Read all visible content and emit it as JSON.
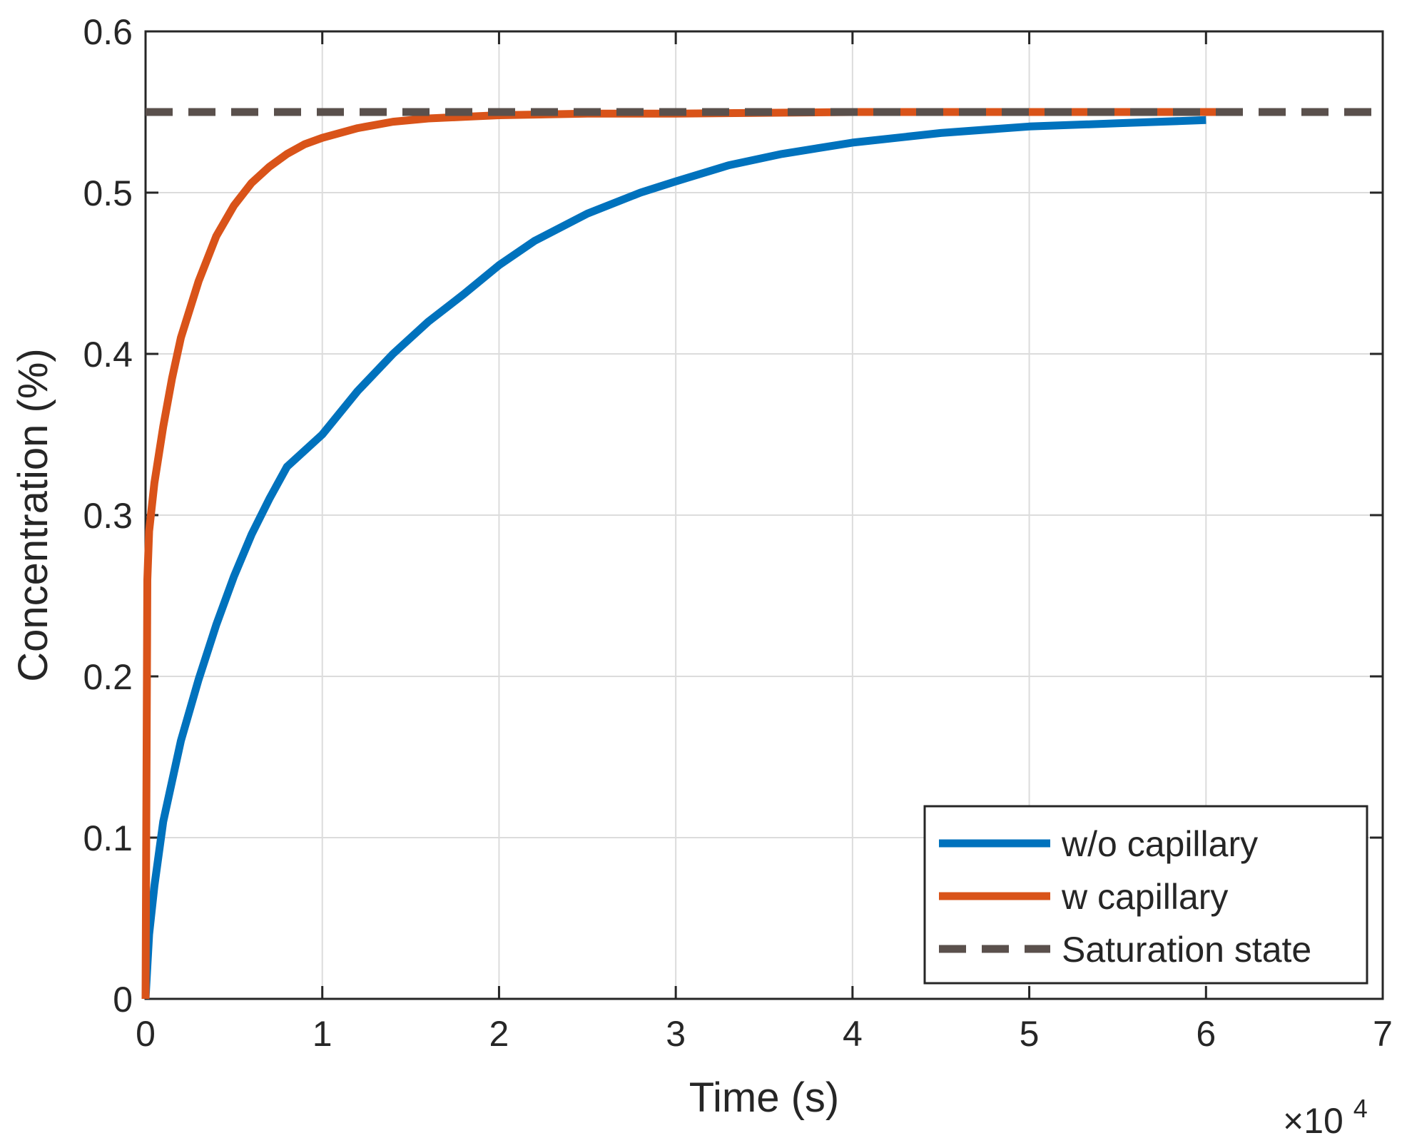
{
  "chart_data": {
    "type": "line",
    "title": "",
    "xlabel": "Time (s)",
    "ylabel": "Concentration (%)",
    "x_multiplier_label": "×10",
    "x_multiplier_exponent": "4",
    "xlim": [
      0,
      7
    ],
    "ylim": [
      0,
      0.6
    ],
    "x_ticks": [
      0,
      1,
      2,
      3,
      4,
      5,
      6,
      7
    ],
    "y_ticks": [
      0,
      0.1,
      0.2,
      0.3,
      0.4,
      0.5,
      0.6
    ],
    "x_tick_labels": [
      "0",
      "1",
      "2",
      "3",
      "4",
      "5",
      "6",
      "7"
    ],
    "y_tick_labels": [
      "0",
      "0.1",
      "0.2",
      "0.3",
      "0.4",
      "0.5",
      "0.6"
    ],
    "grid": true,
    "legend_position": "bottom-right",
    "series": [
      {
        "name": "w/o capillary",
        "color": "#0072BD",
        "style": "solid",
        "x": [
          0,
          0.02,
          0.05,
          0.1,
          0.2,
          0.3,
          0.4,
          0.5,
          0.6,
          0.7,
          0.8,
          1.0,
          1.2,
          1.4,
          1.6,
          1.8,
          2.0,
          2.2,
          2.5,
          2.8,
          3.0,
          3.3,
          3.6,
          4.0,
          4.5,
          5.0,
          5.5,
          6.0
        ],
        "y": [
          0,
          0.04,
          0.07,
          0.11,
          0.16,
          0.198,
          0.232,
          0.262,
          0.288,
          0.31,
          0.33,
          0.35,
          0.377,
          0.4,
          0.42,
          0.437,
          0.455,
          0.47,
          0.487,
          0.5,
          0.507,
          0.517,
          0.524,
          0.531,
          0.537,
          0.541,
          0.543,
          0.545
        ]
      },
      {
        "name": "w capillary",
        "color": "#D95319",
        "style": "solid",
        "x": [
          0,
          0.01,
          0.02,
          0.05,
          0.1,
          0.15,
          0.2,
          0.3,
          0.4,
          0.5,
          0.6,
          0.7,
          0.8,
          0.9,
          1.0,
          1.2,
          1.4,
          1.6,
          1.8,
          2.0,
          2.5,
          3.0,
          4.0,
          5.0,
          6.2
        ],
        "y": [
          0,
          0.26,
          0.29,
          0.32,
          0.355,
          0.385,
          0.41,
          0.445,
          0.473,
          0.492,
          0.506,
          0.516,
          0.524,
          0.53,
          0.534,
          0.54,
          0.544,
          0.546,
          0.547,
          0.548,
          0.549,
          0.549,
          0.55,
          0.55,
          0.55
        ]
      },
      {
        "name": "Saturation state",
        "color": "#5A504C",
        "style": "dashed",
        "x": [
          0,
          7
        ],
        "y": [
          0.55,
          0.55
        ]
      }
    ]
  }
}
